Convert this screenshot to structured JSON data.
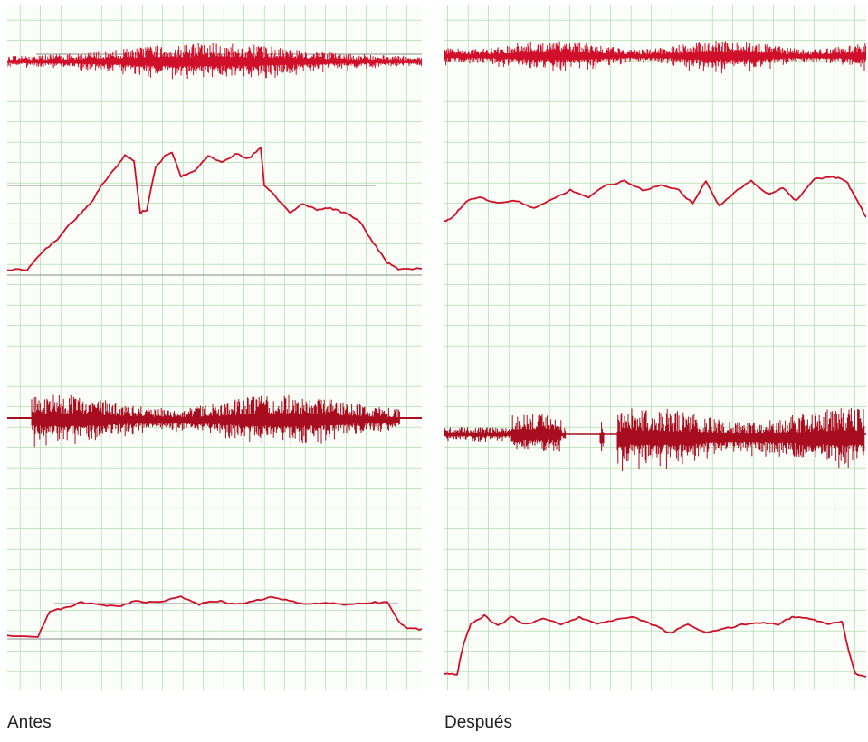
{
  "captions": {
    "left": "Antes",
    "right": "Después"
  }
}
